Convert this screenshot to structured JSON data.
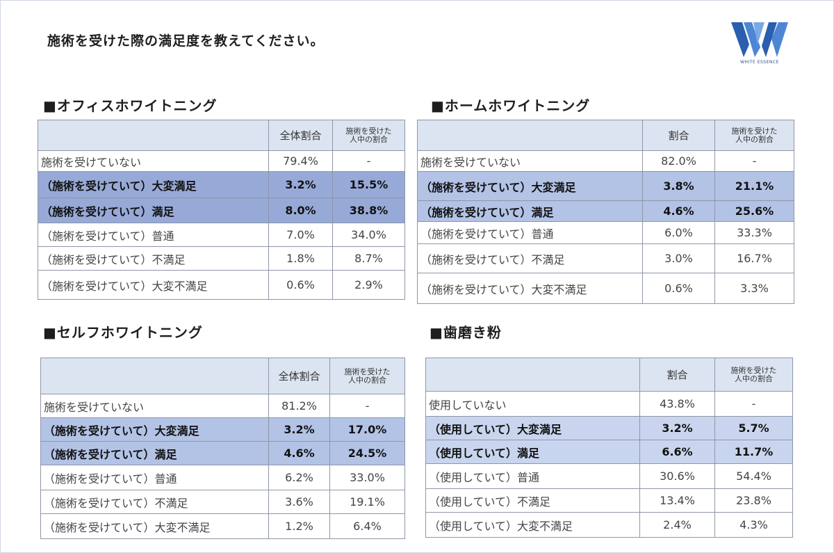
{
  "title": "施術を受けた際の満足度を教えてください。",
  "logo": {
    "text": "WHITE ESSENCE",
    "color": "#2a5fb0"
  },
  "colors": {
    "header_bg": "#dde4f1",
    "highlight_strong": "#97a9d6",
    "highlight_light": "#b3c3e6",
    "border": "#8e96a6"
  },
  "tables": [
    {
      "title": "■オフィスホワイトニング",
      "col1": "全体割合",
      "col2_line1": "施術を受けた",
      "col2_line2": "人中の割合",
      "rows": [
        {
          "label": "施術を受けていない",
          "v1": "79.4%",
          "v2": "-"
        },
        {
          "label": "（施術を受けていて）大変満足",
          "v1": "3.2%",
          "v2": "15.5%"
        },
        {
          "label": "（施術を受けていて）満足",
          "v1": "8.0%",
          "v2": "38.8%"
        },
        {
          "label": "（施術を受けていて）普通",
          "v1": "7.0%",
          "v2": "34.0%"
        },
        {
          "label": "（施術を受けていて）不満足",
          "v1": "1.8%",
          "v2": "8.7%"
        },
        {
          "label": "（施術を受けていて）大変不満足",
          "v1": "0.6%",
          "v2": "2.9%"
        }
      ]
    },
    {
      "title": "■ホームホワイトニング",
      "col1": "割合",
      "col2_line1": "施術を受けた",
      "col2_line2": "人中の割合",
      "rows": [
        {
          "label": "施術を受けていない",
          "v1": "82.0%",
          "v2": "-"
        },
        {
          "label": "（施術を受けていて）大変満足",
          "v1": "3.8%",
          "v2": "21.1%"
        },
        {
          "label": "（施術を受けていて）満足",
          "v1": "4.6%",
          "v2": "25.6%"
        },
        {
          "label": "（施術を受けていて）普通",
          "v1": "6.0%",
          "v2": "33.3%"
        },
        {
          "label": "（施術を受けていて）不満足",
          "v1": "3.0%",
          "v2": "16.7%"
        },
        {
          "label": "（施術を受けていて）大変不満足",
          "v1": "0.6%",
          "v2": "3.3%"
        }
      ]
    },
    {
      "title": "■セルフホワイトニング",
      "col1": "全体割合",
      "col2_line1": "施術を受けた",
      "col2_line2": "人中の割合",
      "rows": [
        {
          "label": "施術を受けていない",
          "v1": "81.2%",
          "v2": "-"
        },
        {
          "label": "（施術を受けていて）大変満足",
          "v1": "3.2%",
          "v2": "17.0%"
        },
        {
          "label": "（施術を受けていて）満足",
          "v1": "4.6%",
          "v2": "24.5%"
        },
        {
          "label": "（施術を受けていて）普通",
          "v1": "6.2%",
          "v2": "33.0%"
        },
        {
          "label": "（施術を受けていて）不満足",
          "v1": "3.6%",
          "v2": "19.1%"
        },
        {
          "label": "（施術を受けていて）大変不満足",
          "v1": "1.2%",
          "v2": "6.4%"
        }
      ]
    },
    {
      "title": "■歯磨き粉",
      "col1": "割合",
      "col2_line1": "施術を受けた",
      "col2_line2": "人中の割合",
      "rows": [
        {
          "label": "使用していない",
          "v1": "43.8%",
          "v2": "-"
        },
        {
          "label": "（使用していて）大変満足",
          "v1": "3.2%",
          "v2": "5.7%"
        },
        {
          "label": "（使用していて）満足",
          "v1": "6.6%",
          "v2": "11.7%"
        },
        {
          "label": "（使用していて）普通",
          "v1": "30.6%",
          "v2": "54.4%"
        },
        {
          "label": "（使用していて）不満足",
          "v1": "13.4%",
          "v2": "23.8%"
        },
        {
          "label": "（使用していて）大変不満足",
          "v1": "2.4%",
          "v2": "4.3%"
        }
      ]
    }
  ]
}
